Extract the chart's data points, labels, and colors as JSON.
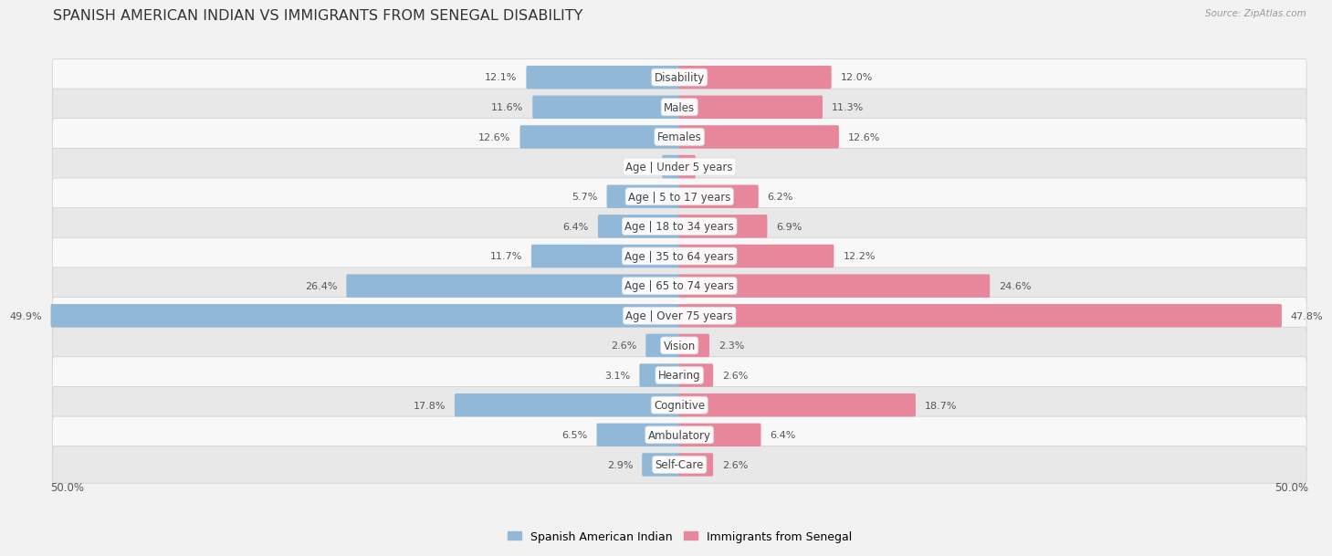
{
  "title": "SPANISH AMERICAN INDIAN VS IMMIGRANTS FROM SENEGAL DISABILITY",
  "source": "Source: ZipAtlas.com",
  "categories": [
    "Disability",
    "Males",
    "Females",
    "Age | Under 5 years",
    "Age | 5 to 17 years",
    "Age | 18 to 34 years",
    "Age | 35 to 64 years",
    "Age | 65 to 74 years",
    "Age | Over 75 years",
    "Vision",
    "Hearing",
    "Cognitive",
    "Ambulatory",
    "Self-Care"
  ],
  "left_values": [
    12.1,
    11.6,
    12.6,
    1.3,
    5.7,
    6.4,
    11.7,
    26.4,
    49.9,
    2.6,
    3.1,
    17.8,
    6.5,
    2.9
  ],
  "right_values": [
    12.0,
    11.3,
    12.6,
    1.2,
    6.2,
    6.9,
    12.2,
    24.6,
    47.8,
    2.3,
    2.6,
    18.7,
    6.4,
    2.6
  ],
  "left_color": "#92b8d8",
  "right_color": "#e8879c",
  "bg_color": "#f2f2f2",
  "row_bg_light": "#f8f8f8",
  "row_bg_dark": "#e8e8e8",
  "axis_limit": 50.0,
  "legend_left": "Spanish American Indian",
  "legend_right": "Immigrants from Senegal",
  "title_fontsize": 11.5,
  "label_fontsize": 8.5,
  "value_fontsize": 8.0
}
